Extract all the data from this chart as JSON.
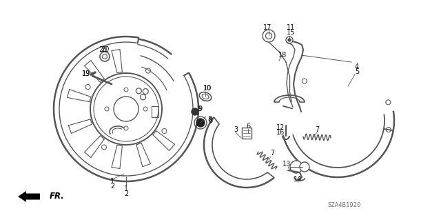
{
  "bg_color": "#ffffff",
  "line_color": "#555555",
  "text_color": "#111111",
  "watermark": "SZA4B1920",
  "figsize": [
    6.4,
    3.19
  ],
  "dpi": 100
}
